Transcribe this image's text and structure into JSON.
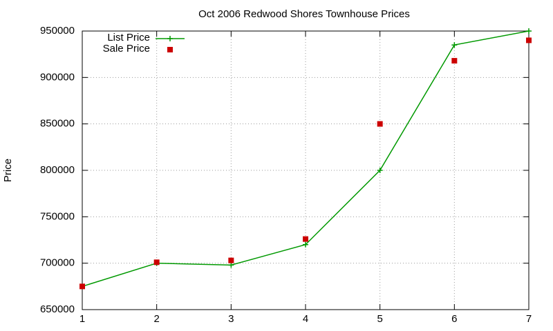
{
  "chart_data": {
    "type": "line",
    "title": "Oct 2006 Redwood Shores Townhouse Prices",
    "y_label": "Price",
    "x": [
      1,
      2,
      3,
      4,
      5,
      6,
      7
    ],
    "series": [
      {
        "name": "List Price",
        "color": "#009900",
        "style": "linespoints",
        "values": [
          675000,
          700000,
          698000,
          720000,
          800000,
          935000,
          950000
        ]
      },
      {
        "name": "Sale Price",
        "color": "#cc0000",
        "style": "points",
        "values": [
          675000,
          701000,
          703000,
          726000,
          850000,
          918000,
          940000
        ]
      }
    ],
    "xlim": [
      1,
      7
    ],
    "xticks": [
      1,
      2,
      3,
      4,
      5,
      6,
      7
    ],
    "ylim": [
      650000,
      950000
    ],
    "yticks": [
      650000,
      700000,
      750000,
      800000,
      850000,
      900000,
      950000
    ],
    "grid": true,
    "legend": "top-left"
  }
}
